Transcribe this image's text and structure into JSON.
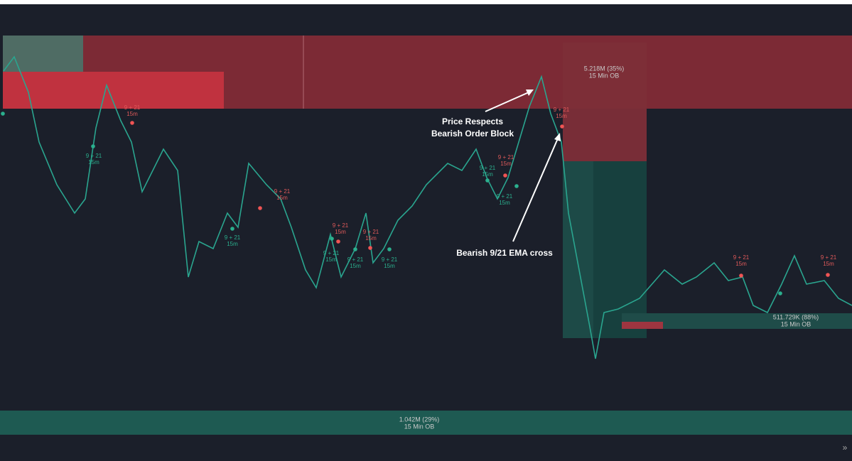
{
  "order_blocks": [
    {
      "size": "5.218M (35%)",
      "timeframe": "15 Min OB"
    },
    {
      "size": "511.729K (88%)",
      "timeframe": "15 Min OB"
    },
    {
      "size": "1.042M (29%)",
      "timeframe": "15 Min OB"
    }
  ],
  "annotations": [
    {
      "line1": "Price Respects",
      "line2": "Bearish Order Block"
    },
    {
      "line1": "Bearish 9/21 EMA cross"
    }
  ],
  "signal_label": {
    "line1": "9 + 21",
    "line2": "15m"
  },
  "nav_button": "»"
}
